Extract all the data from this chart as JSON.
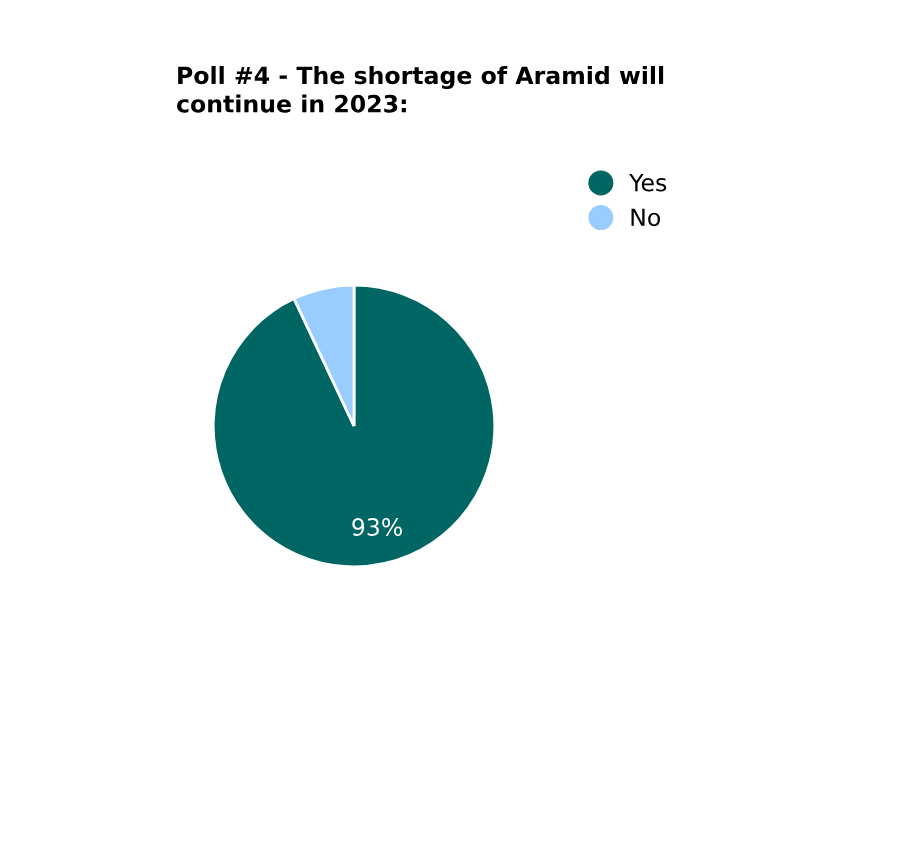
{
  "chart_data": {
    "type": "pie",
    "title": "Poll #4 - The shortage of Aramid will\ncontinue in 2023:",
    "categories": [
      "Yes",
      "No"
    ],
    "values": [
      93,
      7
    ],
    "colors": [
      "#006663",
      "#99ccff"
    ],
    "value_labels": [
      "93%",
      null
    ],
    "legend": "top right"
  }
}
